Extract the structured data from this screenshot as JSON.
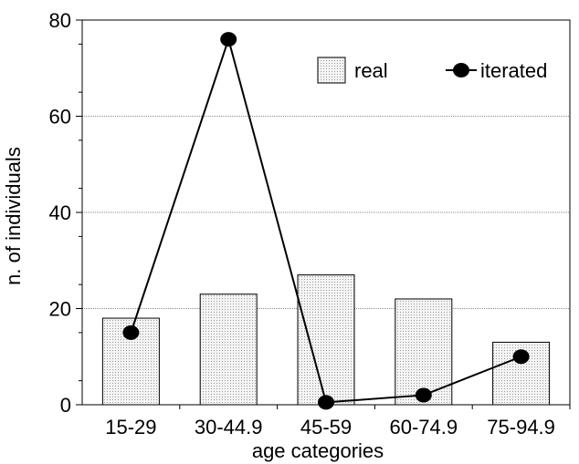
{
  "chart_data": {
    "type": "bar",
    "categories": [
      "15-29",
      "30-44.9",
      "45-59",
      "60-74.9",
      "75-94.9"
    ],
    "series": [
      {
        "name": "real",
        "kind": "bar",
        "values": [
          18,
          23,
          27,
          22,
          13
        ]
      },
      {
        "name": "iterated",
        "kind": "line",
        "values": [
          15,
          76,
          0.5,
          2,
          10
        ]
      }
    ],
    "xlabel": "age categories",
    "ylabel": "n. of individuals",
    "ylim": [
      0,
      80
    ],
    "yticks": [
      0,
      20,
      40,
      60,
      80
    ],
    "grid": true,
    "legend_position": "top-right",
    "colors": {
      "bar_fill": "#e6e6e6",
      "line": "#000000",
      "marker": "#000000"
    }
  }
}
